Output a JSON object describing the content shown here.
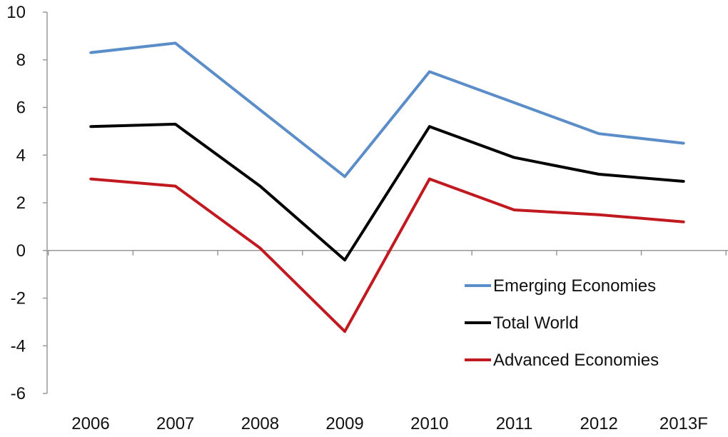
{
  "chart_data": {
    "type": "line",
    "title": "",
    "xlabel": "",
    "ylabel": "",
    "categories": [
      "2006",
      "2007",
      "2008",
      "2009",
      "2010",
      "2011",
      "2012",
      "2013F"
    ],
    "ylim": [
      -6,
      10
    ],
    "yticks": [
      10,
      8,
      6,
      4,
      2,
      0,
      -2,
      -4,
      -6
    ],
    "grid": false,
    "legend_position": "bottom-right",
    "series": [
      {
        "name": "Emerging Economies",
        "color": "#5b8dc9",
        "values": [
          8.3,
          8.7,
          5.9,
          3.1,
          7.5,
          6.2,
          4.9,
          4.5
        ]
      },
      {
        "name": "Total World",
        "color": "#000000",
        "values": [
          5.2,
          5.3,
          2.7,
          -0.4,
          5.2,
          3.9,
          3.2,
          2.9
        ]
      },
      {
        "name": "Advanced Economies",
        "color": "#c0191f",
        "values": [
          3.0,
          2.7,
          0.1,
          -3.4,
          3.0,
          1.7,
          1.5,
          1.2
        ]
      }
    ]
  }
}
